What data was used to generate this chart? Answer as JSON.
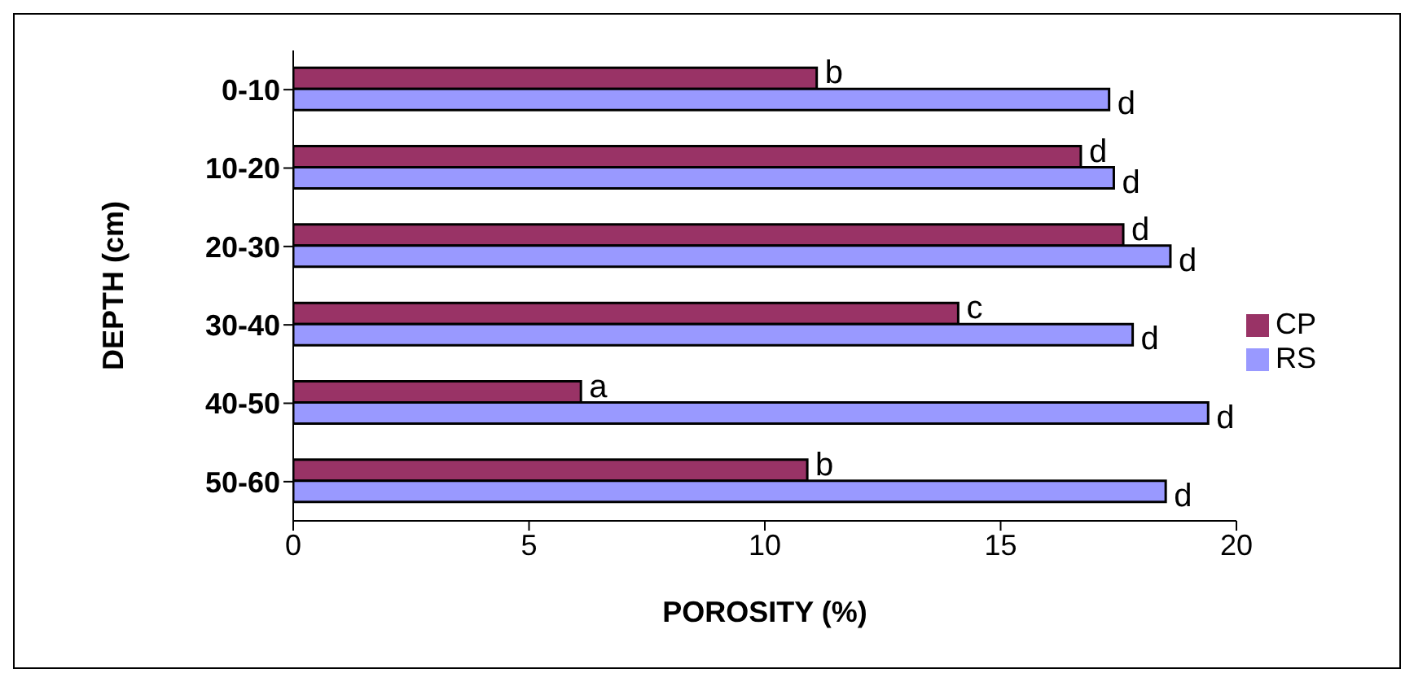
{
  "chart_data": {
    "type": "bar",
    "orientation": "horizontal",
    "xlabel": "POROSITY (%)",
    "ylabel": "DEPTH (cm)",
    "categories": [
      "0-10",
      "10-20",
      "20-30",
      "30-40",
      "40-50",
      "50-60"
    ],
    "series": [
      {
        "name": "CP",
        "color": "#993366",
        "values": [
          11.1,
          16.7,
          17.6,
          14.1,
          6.1,
          10.9
        ],
        "value_labels": [
          "b",
          "d",
          "d",
          "c",
          "a",
          "b"
        ]
      },
      {
        "name": "RS",
        "color": "#9999ff",
        "values": [
          17.3,
          17.4,
          18.6,
          17.8,
          19.4,
          18.5
        ],
        "value_labels": [
          "d",
          "d",
          "d",
          "d",
          "d",
          "d"
        ]
      }
    ],
    "xlim": [
      0,
      20
    ],
    "xticks": [
      0,
      5,
      10,
      15,
      20
    ],
    "grid": false,
    "legend": "right"
  }
}
